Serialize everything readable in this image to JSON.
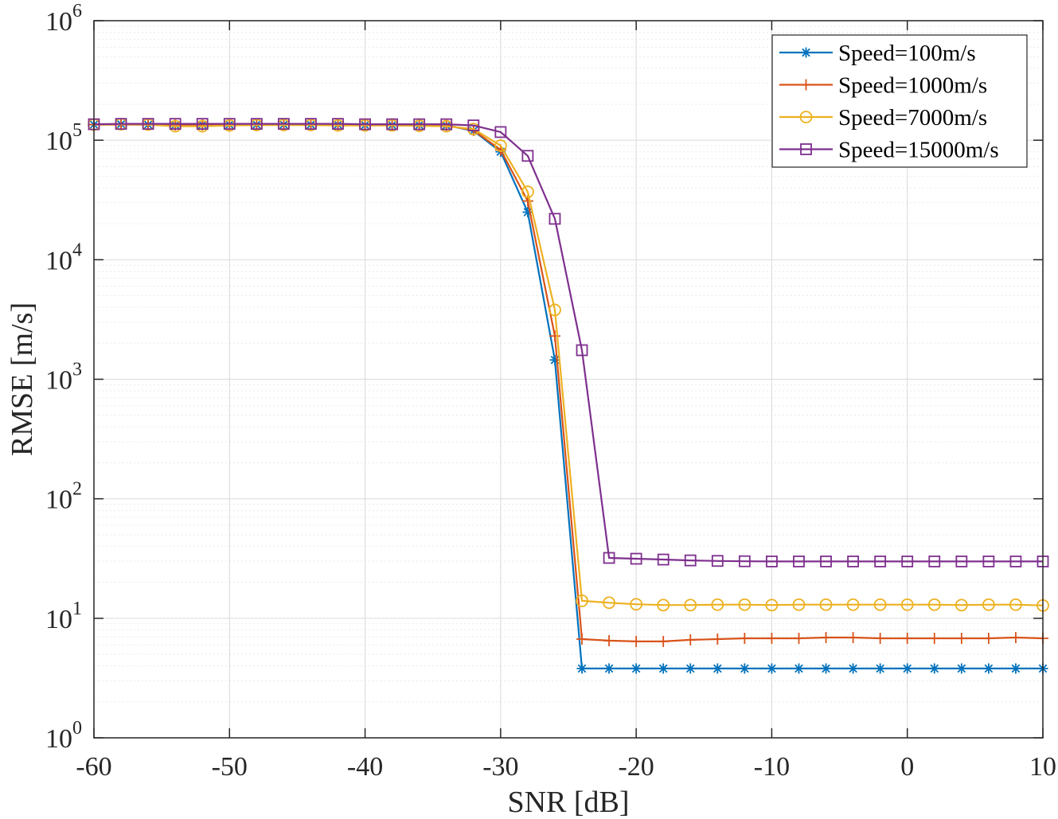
{
  "chart_data": {
    "type": "line",
    "title": "",
    "xlabel": "SNR [dB]",
    "ylabel": "RMSE [m/s]",
    "xlim": [
      -60,
      10
    ],
    "ylim": [
      1,
      1000000
    ],
    "yscale": "log",
    "grid": true,
    "minor_grid": true,
    "legend_position": "top-right",
    "x_ticks": [
      "-60",
      "-50",
      "-40",
      "-30",
      "-20",
      "-10",
      "0",
      "10"
    ],
    "y_ticks": [
      {
        "base": "10",
        "exp": "0"
      },
      {
        "base": "10",
        "exp": "1"
      },
      {
        "base": "10",
        "exp": "2"
      },
      {
        "base": "10",
        "exp": "3"
      },
      {
        "base": "10",
        "exp": "4"
      },
      {
        "base": "10",
        "exp": "5"
      },
      {
        "base": "10",
        "exp": "6"
      }
    ],
    "x": [
      -60,
      -58,
      -56,
      -54,
      -52,
      -50,
      -48,
      -46,
      -44,
      -42,
      -40,
      -38,
      -36,
      -34,
      -32,
      -30,
      -28,
      -26,
      -24,
      -22,
      -20,
      -18,
      -16,
      -14,
      -12,
      -10,
      -8,
      -6,
      -4,
      -2,
      0,
      2,
      4,
      6,
      8,
      10
    ],
    "series": [
      {
        "name": "Speed=100m/s",
        "color": "#0072BD",
        "marker": "asterisk",
        "values": [
          135000,
          136000,
          135000,
          134000,
          135000,
          135000,
          135000,
          135000,
          135000,
          135000,
          134000,
          134000,
          134000,
          133000,
          120000,
          80000,
          25000,
          1450,
          3.8,
          3.8,
          3.8,
          3.8,
          3.8,
          3.8,
          3.8,
          3.8,
          3.8,
          3.8,
          3.8,
          3.8,
          3.8,
          3.8,
          3.8,
          3.8,
          3.8,
          3.8
        ]
      },
      {
        "name": "Speed=1000m/s",
        "color": "#D95319",
        "marker": "plus",
        "values": [
          135000,
          135000,
          135000,
          134000,
          134000,
          135000,
          135000,
          135000,
          135000,
          135000,
          134000,
          134000,
          134000,
          133000,
          121000,
          83000,
          31000,
          2300,
          6.7,
          6.5,
          6.4,
          6.4,
          6.6,
          6.7,
          6.8,
          6.8,
          6.8,
          6.9,
          6.9,
          6.8,
          6.8,
          6.8,
          6.8,
          6.8,
          6.9,
          6.8
        ]
      },
      {
        "name": "Speed=7000m/s",
        "color": "#EDB120",
        "marker": "circle",
        "values": [
          135000,
          136000,
          135000,
          131000,
          131000,
          133000,
          134000,
          134000,
          134000,
          133000,
          133000,
          133000,
          132000,
          131000,
          124000,
          90000,
          37000,
          3800,
          14.0,
          13.5,
          13.1,
          12.9,
          12.9,
          13.0,
          13.0,
          12.9,
          13.0,
          13.0,
          13.0,
          13.0,
          13.0,
          13.0,
          12.9,
          13.0,
          13.0,
          12.8
        ]
      },
      {
        "name": "Speed=15000m/s",
        "color": "#7E2F8E",
        "marker": "square",
        "values": [
          136000,
          137000,
          137000,
          137000,
          137000,
          137000,
          137000,
          137000,
          137000,
          137000,
          136000,
          136000,
          136000,
          136000,
          133000,
          117000,
          74000,
          22000,
          1750,
          32.0,
          31.5,
          31.0,
          30.5,
          30.2,
          30.0,
          29.9,
          29.9,
          29.9,
          29.9,
          29.9,
          29.9,
          29.9,
          29.9,
          29.9,
          29.9,
          29.9
        ]
      }
    ]
  }
}
